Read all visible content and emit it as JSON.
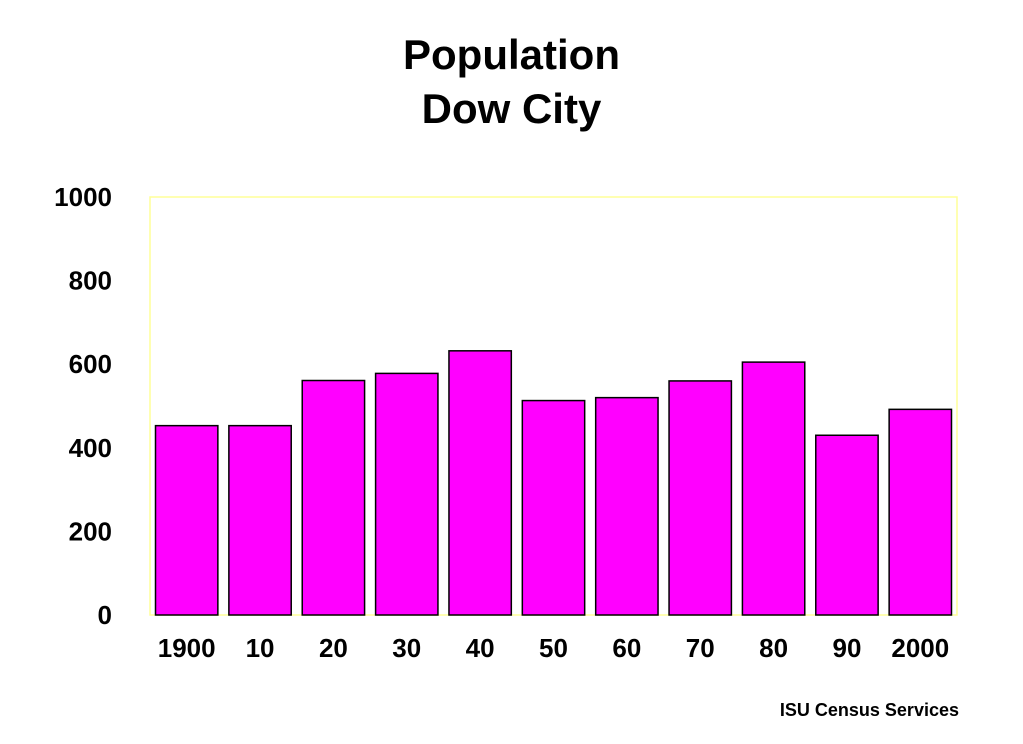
{
  "chart_data": {
    "type": "bar",
    "title_lines": [
      "Population",
      "Dow City"
    ],
    "categories": [
      "1900",
      "10",
      "20",
      "30",
      "40",
      "50",
      "60",
      "70",
      "80",
      "90",
      "2000"
    ],
    "values": [
      453,
      453,
      561,
      578,
      632,
      513,
      520,
      560,
      605,
      430,
      492
    ],
    "ylim": [
      0,
      1000
    ],
    "yticks": [
      0,
      200,
      400,
      600,
      800,
      1000
    ],
    "xlabel": "",
    "ylabel": "",
    "grid": false,
    "legend": "none",
    "colors": {
      "bar_fill": "#ff00ff",
      "bar_stroke": "#000000",
      "plot_border": "#ffff99",
      "background": "#ffffff"
    }
  },
  "footer": {
    "credit": "ISU Census Services"
  }
}
